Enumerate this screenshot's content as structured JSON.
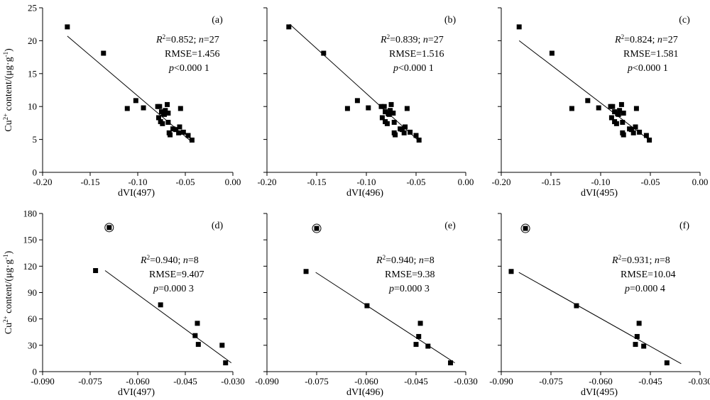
{
  "chart_data": [
    {
      "type": "scatter",
      "panel_label": "(a)",
      "xlabel": "dVI(497)",
      "ylabel": "Cu2+ content/(μg·g-1)",
      "xlim": [
        -0.2,
        0.0
      ],
      "ylim": [
        0,
        25
      ],
      "xticks": [
        -0.2,
        -0.15,
        -0.1,
        -0.05,
        0.0
      ],
      "xtick_labels": [
        "-0.20",
        "-0.15",
        "-0.10",
        "-0.05",
        "0.00"
      ],
      "yticks": [
        0,
        5,
        10,
        15,
        20,
        25
      ],
      "ytick_labels": [
        "0",
        "5",
        "10",
        "15",
        "20",
        "25"
      ],
      "stats": {
        "r2": "=0.852; ",
        "n": "=27",
        "rmse": "RMSE=1.456",
        "p": "<0.000 1"
      },
      "points": [
        [
          -0.174,
          22.1
        ],
        [
          -0.136,
          18.1
        ],
        [
          -0.111,
          9.7
        ],
        [
          -0.102,
          10.9
        ],
        [
          -0.094,
          9.8
        ],
        [
          -0.079,
          10.0
        ],
        [
          -0.077,
          10.0
        ],
        [
          -0.075,
          9.2
        ],
        [
          -0.073,
          8.9
        ],
        [
          -0.071,
          9.4
        ],
        [
          -0.069,
          10.3
        ],
        [
          -0.068,
          9.0
        ],
        [
          -0.078,
          8.3
        ],
        [
          -0.076,
          7.7
        ],
        [
          -0.074,
          7.4
        ],
        [
          -0.072,
          8.8
        ],
        [
          -0.068,
          7.6
        ],
        [
          -0.067,
          6.0
        ],
        [
          -0.066,
          5.7
        ],
        [
          -0.063,
          6.6
        ],
        [
          -0.06,
          6.5
        ],
        [
          -0.056,
          6.9
        ],
        [
          -0.057,
          6.0
        ],
        [
          -0.055,
          9.7
        ],
        [
          -0.052,
          6.1
        ],
        [
          -0.047,
          5.6
        ],
        [
          -0.043,
          4.9
        ]
      ],
      "fit_line": {
        "x": [
          -0.174,
          -0.043
        ],
        "y": [
          20.7,
          4.6
        ]
      }
    },
    {
      "type": "scatter",
      "panel_label": "(b)",
      "xlabel": "dVI(496)",
      "ylabel": "",
      "xlim": [
        -0.2,
        0.0
      ],
      "ylim": [
        0,
        25
      ],
      "xticks": [
        -0.2,
        -0.15,
        -0.1,
        -0.05,
        0.0
      ],
      "xtick_labels": [
        "-0.20",
        "-0.15",
        "-0.10",
        "-0.05",
        "0.00"
      ],
      "yticks": [
        0,
        5,
        10,
        15,
        20,
        25
      ],
      "ytick_labels": [
        "",
        "",
        "",
        "",
        "",
        ""
      ],
      "stats": {
        "r2": "=0.839; ",
        "n": "=27",
        "rmse": "RMSE=1.516",
        "p": "<0.000 1"
      },
      "points": [
        [
          -0.178,
          22.1
        ],
        [
          -0.143,
          18.1
        ],
        [
          -0.119,
          9.7
        ],
        [
          -0.109,
          10.9
        ],
        [
          -0.098,
          9.8
        ],
        [
          -0.085,
          10.0
        ],
        [
          -0.082,
          10.0
        ],
        [
          -0.081,
          9.2
        ],
        [
          -0.078,
          8.9
        ],
        [
          -0.076,
          9.4
        ],
        [
          -0.075,
          10.3
        ],
        [
          -0.073,
          9.0
        ],
        [
          -0.084,
          8.3
        ],
        [
          -0.081,
          7.7
        ],
        [
          -0.079,
          7.4
        ],
        [
          -0.077,
          8.8
        ],
        [
          -0.072,
          7.6
        ],
        [
          -0.072,
          6.0
        ],
        [
          -0.071,
          5.7
        ],
        [
          -0.066,
          6.6
        ],
        [
          -0.064,
          6.5
        ],
        [
          -0.061,
          6.9
        ],
        [
          -0.062,
          6.0
        ],
        [
          -0.059,
          9.7
        ],
        [
          -0.056,
          6.1
        ],
        [
          -0.05,
          5.6
        ],
        [
          -0.047,
          4.9
        ]
      ],
      "fit_line": {
        "x": [
          -0.177,
          -0.046
        ],
        "y": [
          22.5,
          4.6
        ]
      }
    },
    {
      "type": "scatter",
      "panel_label": "(c)",
      "xlabel": "dVI(495)",
      "ylabel": "",
      "xlim": [
        -0.2,
        0.0
      ],
      "ylim": [
        0,
        25
      ],
      "xticks": [
        -0.2,
        -0.15,
        -0.1,
        -0.05,
        0.0
      ],
      "xtick_labels": [
        "-0.20",
        "-0.15",
        "-0.10",
        "-0.05",
        "0.00"
      ],
      "yticks": [
        0,
        5,
        10,
        15,
        20,
        25
      ],
      "ytick_labels": [
        "",
        "",
        "",
        "",
        "",
        ""
      ],
      "stats": {
        "r2": "=0.824; ",
        "n": "=27",
        "rmse": "RMSE=1.581",
        "p": "<0.000 1"
      },
      "points": [
        [
          -0.182,
          22.1
        ],
        [
          -0.149,
          18.1
        ],
        [
          -0.129,
          9.7
        ],
        [
          -0.113,
          10.9
        ],
        [
          -0.102,
          9.8
        ],
        [
          -0.09,
          10.0
        ],
        [
          -0.088,
          10.0
        ],
        [
          -0.086,
          9.2
        ],
        [
          -0.083,
          8.9
        ],
        [
          -0.081,
          9.4
        ],
        [
          -0.079,
          10.3
        ],
        [
          -0.077,
          9.0
        ],
        [
          -0.089,
          8.3
        ],
        [
          -0.086,
          7.7
        ],
        [
          -0.084,
          7.4
        ],
        [
          -0.082,
          8.8
        ],
        [
          -0.078,
          7.6
        ],
        [
          -0.078,
          6.0
        ],
        [
          -0.077,
          5.7
        ],
        [
          -0.071,
          6.6
        ],
        [
          -0.069,
          6.5
        ],
        [
          -0.065,
          6.9
        ],
        [
          -0.067,
          6.0
        ],
        [
          -0.064,
          9.7
        ],
        [
          -0.061,
          6.1
        ],
        [
          -0.054,
          5.6
        ],
        [
          -0.051,
          4.9
        ]
      ],
      "fit_line": {
        "x": [
          -0.182,
          -0.051
        ],
        "y": [
          20.0,
          4.9
        ]
      }
    },
    {
      "type": "scatter",
      "panel_label": "(d)",
      "xlabel": "dVI(497)",
      "ylabel": "Cu2+ content/(μg·g-1)",
      "xlim": [
        -0.09,
        -0.03
      ],
      "ylim": [
        0,
        180
      ],
      "xticks": [
        -0.09,
        -0.075,
        -0.06,
        -0.045,
        -0.03
      ],
      "xtick_labels": [
        "-0.090",
        "-0.075",
        "-0.060",
        "-0.045",
        "-0.030"
      ],
      "yticks": [
        0,
        30,
        60,
        90,
        120,
        150,
        180
      ],
      "ytick_labels": [
        "0",
        "30",
        "60",
        "90",
        "120",
        "150",
        "180"
      ],
      "stats": {
        "r2": "=0.940; ",
        "n": "=8",
        "rmse": "RMSE=9.407",
        "p": "=0.000 3"
      },
      "points": [
        [
          -0.0733,
          115
        ],
        [
          -0.0528,
          76
        ],
        [
          -0.0412,
          55
        ],
        [
          -0.0419,
          41
        ],
        [
          -0.0409,
          31
        ],
        [
          -0.0334,
          30
        ],
        [
          -0.0323,
          10
        ]
      ],
      "outlier": [
        -0.069,
        164
      ],
      "fit_line": {
        "x": [
          -0.0703,
          -0.0305
        ],
        "y": [
          115,
          10
        ]
      }
    },
    {
      "type": "scatter",
      "panel_label": "(e)",
      "xlabel": "dVI(496)",
      "ylabel": "",
      "xlim": [
        -0.09,
        -0.03
      ],
      "ylim": [
        0,
        180
      ],
      "xticks": [
        -0.09,
        -0.075,
        -0.06,
        -0.045,
        -0.03
      ],
      "xtick_labels": [
        "-0.090",
        "-0.075",
        "-0.060",
        "-0.045",
        "-0.030"
      ],
      "yticks": [
        0,
        30,
        60,
        90,
        120,
        150,
        180
      ],
      "ytick_labels": [
        "",
        "",
        "",
        "",
        "",
        "",
        ""
      ],
      "stats": {
        "r2": "=0.940; ",
        "n": "=8",
        "rmse": "RMSE=9.38",
        "p": "=0.000 3"
      },
      "points": [
        [
          -0.0782,
          114
        ],
        [
          -0.0598,
          75
        ],
        [
          -0.0437,
          55
        ],
        [
          -0.0442,
          40
        ],
        [
          -0.045,
          31
        ],
        [
          -0.0414,
          29
        ],
        [
          -0.0346,
          10
        ]
      ],
      "outlier": [
        -0.075,
        163
      ],
      "fit_line": {
        "x": [
          -0.0753,
          -0.0333
        ],
        "y": [
          113,
          10
        ]
      }
    },
    {
      "type": "scatter",
      "panel_label": "(f)",
      "xlabel": "dVI(495)",
      "ylabel": "",
      "xlim": [
        -0.09,
        -0.03
      ],
      "ylim": [
        0,
        180
      ],
      "xticks": [
        -0.09,
        -0.075,
        -0.06,
        -0.045,
        -0.03
      ],
      "xtick_labels": [
        "-0.090",
        "-0.075",
        "-0.060",
        "-0.045",
        "-0.030"
      ],
      "yticks": [
        0,
        30,
        60,
        90,
        120,
        150,
        180
      ],
      "ytick_labels": [
        "",
        "",
        "",
        "",
        "",
        "",
        ""
      ],
      "stats": {
        "r2": "=0.931; ",
        "n": "=8",
        "rmse": "RMSE=10.04",
        "p": "=0.000 4"
      },
      "points": [
        [
          -0.087,
          114
        ],
        [
          -0.0673,
          75
        ],
        [
          -0.0484,
          55
        ],
        [
          -0.049,
          40
        ],
        [
          -0.0495,
          31
        ],
        [
          -0.047,
          29
        ],
        [
          -0.04,
          10
        ]
      ],
      "outlier": [
        -0.0827,
        163
      ],
      "fit_line": {
        "x": [
          -0.0847,
          -0.0357
        ],
        "y": [
          113,
          9
        ]
      }
    }
  ]
}
